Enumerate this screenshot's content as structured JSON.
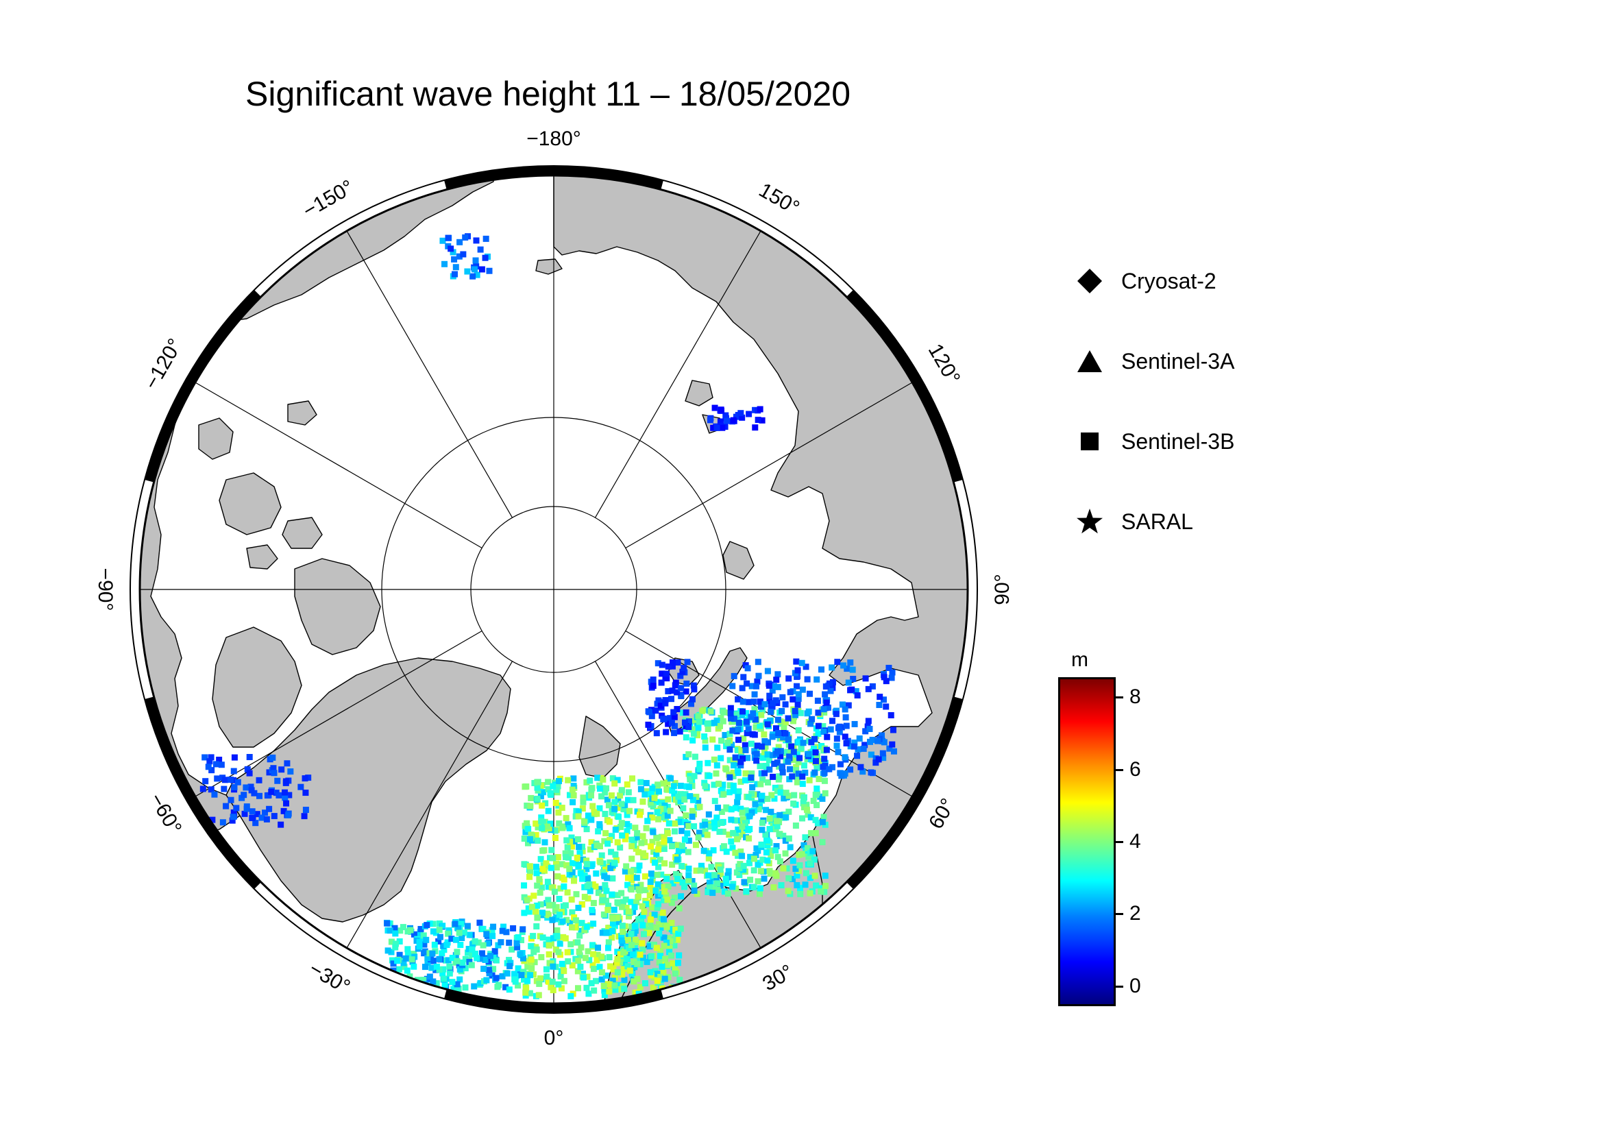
{
  "title": "Significant wave height 11 – 18/05/2020",
  "map": {
    "projection": "north-polar-stereographic",
    "longitude_labels": [
      {
        "lon": -180,
        "text": "−180°"
      },
      {
        "lon": 150,
        "text": "150°"
      },
      {
        "lon": 120,
        "text": "120°"
      },
      {
        "lon": 90,
        "text": "90°"
      },
      {
        "lon": 60,
        "text": "60°"
      },
      {
        "lon": 30,
        "text": "30°"
      },
      {
        "lon": 0,
        "text": "0°"
      },
      {
        "lon": -30,
        "text": "−30°"
      },
      {
        "lon": -60,
        "text": "−60°"
      },
      {
        "lon": -90,
        "text": "−90°"
      },
      {
        "lon": -120,
        "text": "−120°"
      },
      {
        "lon": -150,
        "text": "−150°"
      }
    ],
    "colors": {
      "land": "#c0c0c0",
      "ocean": "#ffffff",
      "grid": "#000000",
      "frame": "#000000"
    }
  },
  "legend": {
    "items": [
      {
        "symbol": "diamond",
        "label": "Cryosat-2"
      },
      {
        "symbol": "triangle",
        "label": "Sentinel-3A"
      },
      {
        "symbol": "square",
        "label": "Sentinel-3B"
      },
      {
        "symbol": "star",
        "label": "SARAL"
      }
    ]
  },
  "colorbar": {
    "unit": "m",
    "min": -0.5,
    "max": 8.5,
    "ticks": [
      {
        "value": 8,
        "label": "8"
      },
      {
        "value": 6,
        "label": "6"
      },
      {
        "value": 4,
        "label": "4"
      },
      {
        "value": 2,
        "label": "2"
      },
      {
        "value": 0,
        "label": "0"
      }
    ]
  }
}
